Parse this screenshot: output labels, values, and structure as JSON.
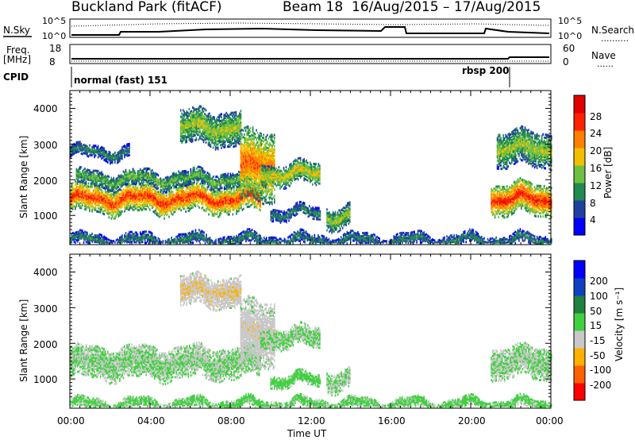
{
  "header": {
    "station": "Buckland Park (fitACF)",
    "beam": "Beam 18",
    "dates": "16/Aug/2015 – 17/Aug/2015"
  },
  "panels": {
    "sky": {
      "left_label": "N.Sky",
      "right_label": "N.Search",
      "right_legend": "..........",
      "y_ticks": [
        "10^5",
        "10^0"
      ],
      "y_ticks_right": [
        "10^5",
        "10^0"
      ]
    },
    "freq": {
      "left_label_1": "Freq.",
      "left_label_2": "[MHz]",
      "right_label": "Nave",
      "right_legend": "......",
      "y_ticks": [
        "18",
        "8"
      ],
      "y_ticks_right": [
        "60",
        "0"
      ]
    },
    "cpid": {
      "label": "CPID",
      "mode_1": "normal (fast) 151",
      "mode_2": "rbsp 200"
    },
    "power": {
      "ylabel": "Slant Range [km]",
      "y_ticks": [
        "4000",
        "3000",
        "2000",
        "1000"
      ],
      "colorbar_label": "Power [dB]",
      "colorbar_ticks": [
        "28",
        "24",
        "20",
        "16",
        "12",
        "8",
        "4"
      ],
      "colors": [
        "#0000ff",
        "#2040a0",
        "#208a50",
        "#6ec040",
        "#f0c000",
        "#ff8000",
        "#ff2000",
        "#e00000"
      ]
    },
    "velocity": {
      "ylabel": "Slant Range [km]",
      "y_ticks": [
        "4000",
        "3000",
        "2000",
        "1000"
      ],
      "colorbar_label": "Velocity [m s⁻¹]",
      "colorbar_ticks": [
        "200",
        "100",
        "50",
        "15",
        "-15",
        "-50",
        "-100",
        "-200"
      ],
      "colors": [
        "#ff0000",
        "#ff6000",
        "#ffb000",
        "#c8c8c8",
        "#40d040",
        "#208040",
        "#1040c0",
        "#0000ff"
      ]
    }
  },
  "xaxis": {
    "ticks": [
      "00:00",
      "04:00",
      "08:00",
      "12:00",
      "16:00",
      "20:00",
      "00:00"
    ],
    "label": "Time UT"
  },
  "chart_data": {
    "type": "heatmap",
    "title": "Buckland Park (fitACF) Beam 18 16/Aug/2015 – 17/Aug/2015",
    "xlabel": "Time UT",
    "ylabel": "Slant Range [km]",
    "xlim_hours": [
      0,
      24
    ],
    "ylim": [
      180,
      4500
    ],
    "power_range_db": [
      0,
      32
    ],
    "velocity_range": [
      -250,
      250
    ],
    "power_bands": [
      {
        "t_start": 0.0,
        "t_end": 9.5,
        "range_center": 1500,
        "halfwidth": 280,
        "power": 26
      },
      {
        "t_start": 0.3,
        "t_end": 9.0,
        "range_center": 2050,
        "halfwidth": 150,
        "power": 14
      },
      {
        "t_start": 0.0,
        "t_end": 3.0,
        "range_center": 2800,
        "halfwidth": 120,
        "power": 10
      },
      {
        "t_start": 5.5,
        "t_end": 8.5,
        "range_center": 3500,
        "halfwidth": 350,
        "power": 16
      },
      {
        "t_start": 8.5,
        "t_end": 10.2,
        "range_center": 2400,
        "halfwidth": 700,
        "power": 24
      },
      {
        "t_start": 9.5,
        "t_end": 12.5,
        "range_center": 2200,
        "halfwidth": 220,
        "power": 18
      },
      {
        "t_start": 10.0,
        "t_end": 12.5,
        "range_center": 1100,
        "halfwidth": 120,
        "power": 10
      },
      {
        "t_start": 12.8,
        "t_end": 14.0,
        "range_center": 1000,
        "halfwidth": 220,
        "power": 16
      },
      {
        "t_start": 21.0,
        "t_end": 24.0,
        "range_center": 1500,
        "halfwidth": 320,
        "power": 27
      },
      {
        "t_start": 21.3,
        "t_end": 24.0,
        "range_center": 2900,
        "halfwidth": 350,
        "power": 16
      },
      {
        "t_start": 0.0,
        "t_end": 24.0,
        "range_center": 330,
        "halfwidth": 120,
        "power": 10
      }
    ],
    "velocity_bands": [
      {
        "t_start": 0.0,
        "t_end": 9.5,
        "range_center": 1500,
        "halfwidth": 320,
        "velocity": 0
      },
      {
        "t_start": 5.5,
        "t_end": 8.5,
        "range_center": 3500,
        "halfwidth": 300,
        "velocity": -60
      },
      {
        "t_start": 8.5,
        "t_end": 10.2,
        "range_center": 2300,
        "halfwidth": 650,
        "velocity": -40
      },
      {
        "t_start": 9.5,
        "t_end": 12.5,
        "range_center": 2200,
        "halfwidth": 200,
        "velocity": 0
      },
      {
        "t_start": 10.0,
        "t_end": 12.5,
        "range_center": 1000,
        "halfwidth": 120,
        "velocity": 30
      },
      {
        "t_start": 12.8,
        "t_end": 14.0,
        "range_center": 1000,
        "halfwidth": 200,
        "velocity": 0
      },
      {
        "t_start": 21.0,
        "t_end": 24.0,
        "range_center": 1500,
        "halfwidth": 320,
        "velocity": 0
      },
      {
        "t_start": 0.0,
        "t_end": 24.0,
        "range_center": 330,
        "halfwidth": 110,
        "velocity": 20
      }
    ]
  }
}
